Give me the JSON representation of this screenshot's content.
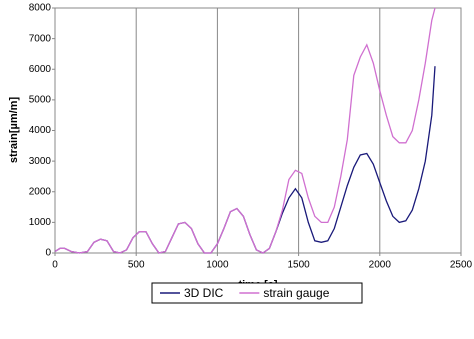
{
  "chart_data": {
    "type": "line",
    "xlabel": "time [s]",
    "ylabel": "strain[µm/m]",
    "x": [
      0,
      30,
      60,
      100,
      150,
      200,
      240,
      280,
      320,
      360,
      400,
      440,
      480,
      520,
      560,
      600,
      640,
      680,
      720,
      760,
      800,
      840,
      880,
      920,
      960,
      1000,
      1040,
      1080,
      1120,
      1160,
      1200,
      1240,
      1280,
      1320,
      1360,
      1400,
      1440,
      1480,
      1520,
      1560,
      1600,
      1640,
      1680,
      1720,
      1760,
      1800,
      1840,
      1880,
      1920,
      1960,
      2000,
      2040,
      2080,
      2120,
      2160,
      2200,
      2240,
      2280,
      2320,
      2340
    ],
    "series": [
      {
        "name": "3D DIC",
        "color": "#1a1a7a",
        "values": [
          50,
          150,
          150,
          50,
          0,
          50,
          350,
          450,
          400,
          50,
          0,
          100,
          500,
          700,
          700,
          300,
          0,
          50,
          500,
          950,
          1000,
          800,
          300,
          0,
          0,
          300,
          800,
          1350,
          1450,
          1200,
          600,
          100,
          0,
          150,
          700,
          1300,
          1800,
          2100,
          1800,
          1000,
          400,
          350,
          400,
          800,
          1500,
          2200,
          2800,
          3200,
          3250,
          2900,
          2300,
          1700,
          1200,
          1000,
          1050,
          1400,
          2100,
          3000,
          4500,
          6100
        ]
      },
      {
        "name": "strain gauge",
        "color": "#d070d0",
        "values": [
          50,
          150,
          150,
          50,
          0,
          50,
          350,
          450,
          400,
          50,
          0,
          100,
          500,
          700,
          700,
          300,
          0,
          50,
          500,
          950,
          1000,
          800,
          300,
          0,
          0,
          300,
          800,
          1350,
          1450,
          1200,
          600,
          100,
          0,
          150,
          700,
          1400,
          2400,
          2700,
          2600,
          1800,
          1200,
          1000,
          1000,
          1500,
          2500,
          3700,
          5800,
          6400,
          6800,
          6200,
          5300,
          4500,
          3800,
          3600,
          3600,
          4000,
          5000,
          6200,
          7600,
          8000
        ]
      }
    ],
    "xlim": [
      0,
      2500
    ],
    "xticks": [
      0,
      500,
      1000,
      1500,
      2000,
      2500
    ],
    "ylim": [
      0,
      8000
    ],
    "yticks": [
      0,
      1000,
      2000,
      3000,
      4000,
      5000,
      6000,
      7000,
      8000
    ],
    "grid": "x",
    "legend": "bottom"
  }
}
